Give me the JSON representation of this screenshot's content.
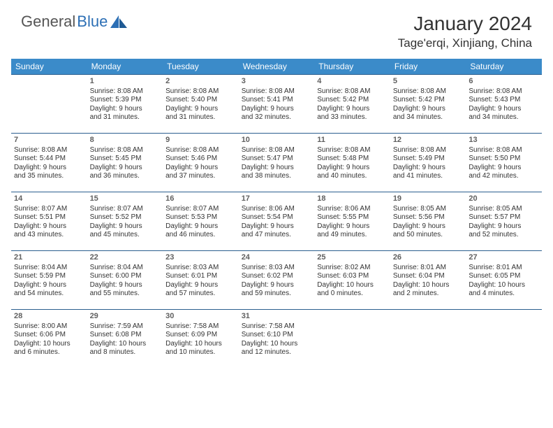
{
  "logo": {
    "part1": "General",
    "part2": "Blue"
  },
  "title": "January 2024",
  "location": "Tage'erqi, Xinjiang, China",
  "colors": {
    "header_bg": "#3b8bc9",
    "header_text": "#ffffff",
    "cell_border": "#2b5f8f",
    "logo_gray": "#555555",
    "logo_blue": "#2c6fb5",
    "text": "#333333",
    "daynum": "#606060"
  },
  "typography": {
    "title_fontsize": 28,
    "location_fontsize": 17,
    "dayheader_fontsize": 12,
    "daynum_fontsize": 11,
    "body_fontsize": 10
  },
  "day_headers": [
    "Sunday",
    "Monday",
    "Tuesday",
    "Wednesday",
    "Thursday",
    "Friday",
    "Saturday"
  ],
  "weeks": [
    [
      null,
      {
        "n": "1",
        "sr": "Sunrise: 8:08 AM",
        "ss": "Sunset: 5:39 PM",
        "d1": "Daylight: 9 hours",
        "d2": "and 31 minutes."
      },
      {
        "n": "2",
        "sr": "Sunrise: 8:08 AM",
        "ss": "Sunset: 5:40 PM",
        "d1": "Daylight: 9 hours",
        "d2": "and 31 minutes."
      },
      {
        "n": "3",
        "sr": "Sunrise: 8:08 AM",
        "ss": "Sunset: 5:41 PM",
        "d1": "Daylight: 9 hours",
        "d2": "and 32 minutes."
      },
      {
        "n": "4",
        "sr": "Sunrise: 8:08 AM",
        "ss": "Sunset: 5:42 PM",
        "d1": "Daylight: 9 hours",
        "d2": "and 33 minutes."
      },
      {
        "n": "5",
        "sr": "Sunrise: 8:08 AM",
        "ss": "Sunset: 5:42 PM",
        "d1": "Daylight: 9 hours",
        "d2": "and 34 minutes."
      },
      {
        "n": "6",
        "sr": "Sunrise: 8:08 AM",
        "ss": "Sunset: 5:43 PM",
        "d1": "Daylight: 9 hours",
        "d2": "and 34 minutes."
      }
    ],
    [
      {
        "n": "7",
        "sr": "Sunrise: 8:08 AM",
        "ss": "Sunset: 5:44 PM",
        "d1": "Daylight: 9 hours",
        "d2": "and 35 minutes."
      },
      {
        "n": "8",
        "sr": "Sunrise: 8:08 AM",
        "ss": "Sunset: 5:45 PM",
        "d1": "Daylight: 9 hours",
        "d2": "and 36 minutes."
      },
      {
        "n": "9",
        "sr": "Sunrise: 8:08 AM",
        "ss": "Sunset: 5:46 PM",
        "d1": "Daylight: 9 hours",
        "d2": "and 37 minutes."
      },
      {
        "n": "10",
        "sr": "Sunrise: 8:08 AM",
        "ss": "Sunset: 5:47 PM",
        "d1": "Daylight: 9 hours",
        "d2": "and 38 minutes."
      },
      {
        "n": "11",
        "sr": "Sunrise: 8:08 AM",
        "ss": "Sunset: 5:48 PM",
        "d1": "Daylight: 9 hours",
        "d2": "and 40 minutes."
      },
      {
        "n": "12",
        "sr": "Sunrise: 8:08 AM",
        "ss": "Sunset: 5:49 PM",
        "d1": "Daylight: 9 hours",
        "d2": "and 41 minutes."
      },
      {
        "n": "13",
        "sr": "Sunrise: 8:08 AM",
        "ss": "Sunset: 5:50 PM",
        "d1": "Daylight: 9 hours",
        "d2": "and 42 minutes."
      }
    ],
    [
      {
        "n": "14",
        "sr": "Sunrise: 8:07 AM",
        "ss": "Sunset: 5:51 PM",
        "d1": "Daylight: 9 hours",
        "d2": "and 43 minutes."
      },
      {
        "n": "15",
        "sr": "Sunrise: 8:07 AM",
        "ss": "Sunset: 5:52 PM",
        "d1": "Daylight: 9 hours",
        "d2": "and 45 minutes."
      },
      {
        "n": "16",
        "sr": "Sunrise: 8:07 AM",
        "ss": "Sunset: 5:53 PM",
        "d1": "Daylight: 9 hours",
        "d2": "and 46 minutes."
      },
      {
        "n": "17",
        "sr": "Sunrise: 8:06 AM",
        "ss": "Sunset: 5:54 PM",
        "d1": "Daylight: 9 hours",
        "d2": "and 47 minutes."
      },
      {
        "n": "18",
        "sr": "Sunrise: 8:06 AM",
        "ss": "Sunset: 5:55 PM",
        "d1": "Daylight: 9 hours",
        "d2": "and 49 minutes."
      },
      {
        "n": "19",
        "sr": "Sunrise: 8:05 AM",
        "ss": "Sunset: 5:56 PM",
        "d1": "Daylight: 9 hours",
        "d2": "and 50 minutes."
      },
      {
        "n": "20",
        "sr": "Sunrise: 8:05 AM",
        "ss": "Sunset: 5:57 PM",
        "d1": "Daylight: 9 hours",
        "d2": "and 52 minutes."
      }
    ],
    [
      {
        "n": "21",
        "sr": "Sunrise: 8:04 AM",
        "ss": "Sunset: 5:59 PM",
        "d1": "Daylight: 9 hours",
        "d2": "and 54 minutes."
      },
      {
        "n": "22",
        "sr": "Sunrise: 8:04 AM",
        "ss": "Sunset: 6:00 PM",
        "d1": "Daylight: 9 hours",
        "d2": "and 55 minutes."
      },
      {
        "n": "23",
        "sr": "Sunrise: 8:03 AM",
        "ss": "Sunset: 6:01 PM",
        "d1": "Daylight: 9 hours",
        "d2": "and 57 minutes."
      },
      {
        "n": "24",
        "sr": "Sunrise: 8:03 AM",
        "ss": "Sunset: 6:02 PM",
        "d1": "Daylight: 9 hours",
        "d2": "and 59 minutes."
      },
      {
        "n": "25",
        "sr": "Sunrise: 8:02 AM",
        "ss": "Sunset: 6:03 PM",
        "d1": "Daylight: 10 hours",
        "d2": "and 0 minutes."
      },
      {
        "n": "26",
        "sr": "Sunrise: 8:01 AM",
        "ss": "Sunset: 6:04 PM",
        "d1": "Daylight: 10 hours",
        "d2": "and 2 minutes."
      },
      {
        "n": "27",
        "sr": "Sunrise: 8:01 AM",
        "ss": "Sunset: 6:05 PM",
        "d1": "Daylight: 10 hours",
        "d2": "and 4 minutes."
      }
    ],
    [
      {
        "n": "28",
        "sr": "Sunrise: 8:00 AM",
        "ss": "Sunset: 6:06 PM",
        "d1": "Daylight: 10 hours",
        "d2": "and 6 minutes."
      },
      {
        "n": "29",
        "sr": "Sunrise: 7:59 AM",
        "ss": "Sunset: 6:08 PM",
        "d1": "Daylight: 10 hours",
        "d2": "and 8 minutes."
      },
      {
        "n": "30",
        "sr": "Sunrise: 7:58 AM",
        "ss": "Sunset: 6:09 PM",
        "d1": "Daylight: 10 hours",
        "d2": "and 10 minutes."
      },
      {
        "n": "31",
        "sr": "Sunrise: 7:58 AM",
        "ss": "Sunset: 6:10 PM",
        "d1": "Daylight: 10 hours",
        "d2": "and 12 minutes."
      },
      null,
      null,
      null
    ]
  ]
}
